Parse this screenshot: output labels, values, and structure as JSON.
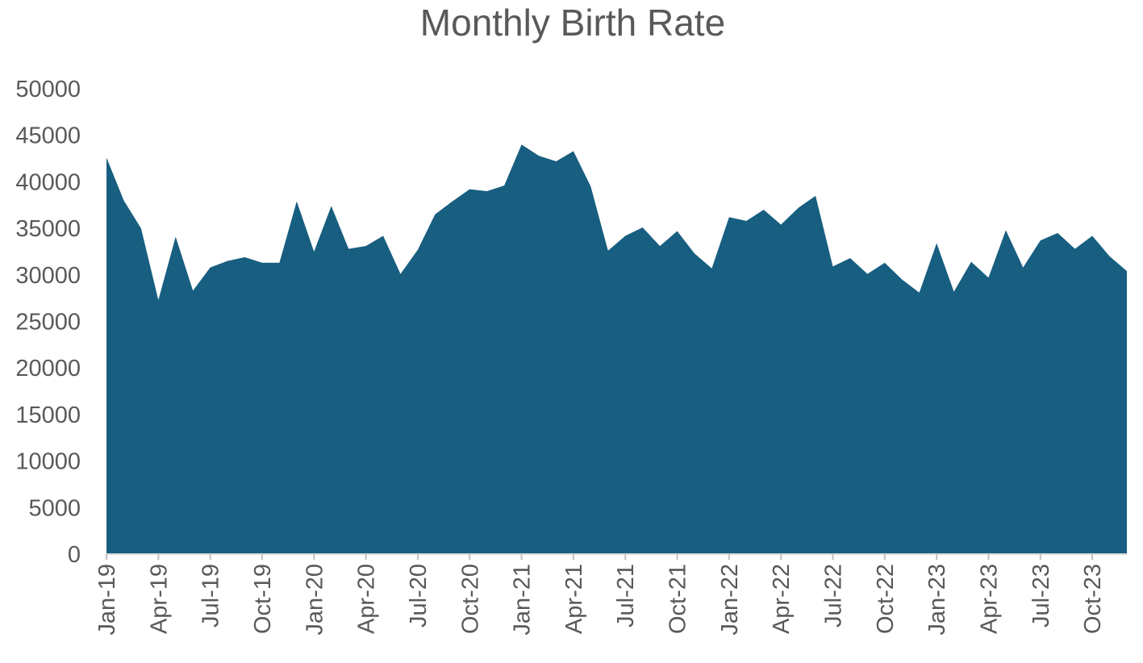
{
  "chart_data": {
    "type": "area",
    "title": "Monthly Birth Rate",
    "xlabel": "",
    "ylabel": "",
    "ylim": [
      0,
      50000
    ],
    "yticks": [
      0,
      5000,
      10000,
      15000,
      20000,
      25000,
      30000,
      35000,
      40000,
      45000,
      50000
    ],
    "xtick_labels": [
      "Jan-19",
      "Apr-19",
      "Jul-19",
      "Oct-19",
      "Jan-20",
      "Apr-20",
      "Jul-20",
      "Oct-20",
      "Jan-21",
      "Apr-21",
      "Jul-21",
      "Oct-21",
      "Jan-22",
      "Apr-22",
      "Jul-22",
      "Oct-22",
      "Jan-23",
      "Apr-23",
      "Jul-23",
      "Oct-23"
    ],
    "x_start": "Jan-19",
    "x_end": "Dec-23",
    "grid": false,
    "legend": "none",
    "color": "#175e80",
    "series": [
      {
        "values": [
          42600,
          38000,
          35000,
          27300,
          34100,
          28300,
          30800,
          31500,
          31900,
          31300,
          31300,
          37900,
          32500,
          37400,
          32800,
          33100,
          34200,
          30100,
          32700,
          36500,
          37900,
          39200,
          39000,
          39600,
          44000,
          42800,
          42200,
          43300,
          39500,
          32600,
          34200,
          35100,
          33100,
          34700,
          32300,
          30700,
          36200,
          35800,
          37000,
          35400,
          37200,
          38500,
          30900,
          31800,
          30100,
          31300,
          29500,
          28100,
          33400,
          28200,
          31400,
          29700,
          34800,
          30800,
          33700,
          34500,
          32800,
          34200,
          32000,
          30400
        ]
      }
    ]
  }
}
